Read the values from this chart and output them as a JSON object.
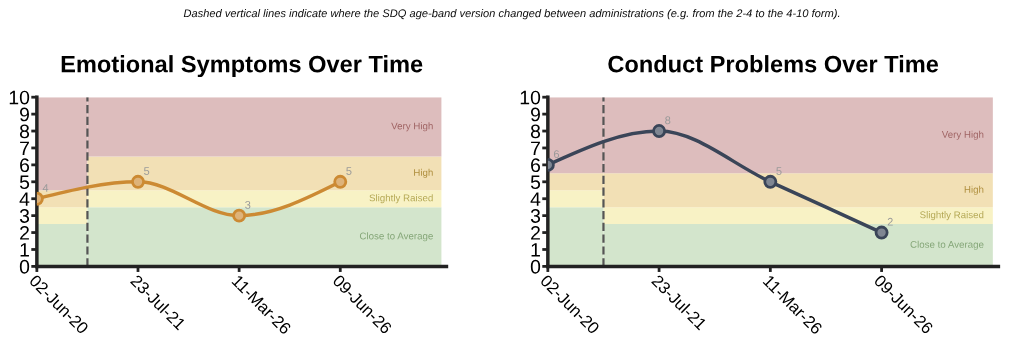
{
  "chart_data": [
    {
      "type": "line",
      "title": "Emotional Symptoms Over Time",
      "annotations": [
        "Dashed vertical lines indicate where the SDQ age-band version changed between administrations (e.g. from the 2-4 to the 4-10 form)."
      ],
      "categories": [
        "02-Jun-20",
        "23-Jul-21",
        "11-Mar-26",
        "09-Jun-26"
      ],
      "series": [
        {
          "color": "#cc8a33",
          "values": [
            4,
            5,
            3,
            5
          ]
        }
      ],
      "ylim": [
        0,
        10
      ],
      "yticks": [
        0,
        1,
        2,
        3,
        4,
        5,
        6,
        7,
        8,
        9,
        10
      ],
      "marker": "circle",
      "line_style": "solid",
      "data_labels": true,
      "bands": [
        {
          "axis": "y",
          "from": 0,
          "to": 2.5,
          "color": "#d3e5cc"
        },
        {
          "axis": "y",
          "from": 2.5,
          "to": 3.5,
          "color": "#f8f2c5"
        },
        {
          "axis": "y",
          "from": 3.5,
          "to": 4.5,
          "color": "#f2e0b5"
        },
        {
          "axis": "y",
          "from": 4.5,
          "to": 10,
          "color": "#ddbdbd"
        },
        {
          "axis": "y",
          "from": 0,
          "to": 3.5,
          "color": "#d3e5cc",
          "label": "Close to Average"
        },
        {
          "axis": "y",
          "from": 3.5,
          "to": 4.5,
          "color": "#f8f2c5",
          "label": "Slightly Raised"
        },
        {
          "axis": "y",
          "from": 4.5,
          "to": 6.5,
          "color": "#f2e0b5",
          "label": "High"
        },
        {
          "axis": "y",
          "from": 6.5,
          "to": 10,
          "color": "#ddbdbd",
          "label": "Very High"
        }
      ]
    },
    {
      "type": "line",
      "title": "Conduct Problems Over Time",
      "categories": [
        "02-Jun-20",
        "23-Jul-21",
        "11-Mar-26",
        "09-Jun-26"
      ],
      "series": [
        {
          "color": "#3a4558",
          "values": [
            6,
            8,
            5,
            2
          ]
        }
      ],
      "ylim": [
        0,
        10
      ],
      "yticks": [
        0,
        1,
        2,
        3,
        4,
        5,
        6,
        7,
        8,
        9,
        10
      ],
      "marker": "circle",
      "line_style": "solid",
      "data_labels": true,
      "bands": [
        {
          "axis": "y",
          "from": 0,
          "to": 2.5,
          "color": "#d3e5cc",
          "label": "Close to Average"
        },
        {
          "axis": "y",
          "from": 2.5,
          "to": 3.5,
          "color": "#f8f2c5",
          "label": "Slightly Raised"
        },
        {
          "axis": "y",
          "from": 3.5,
          "to": 5.5,
          "color": "#f2e0b5",
          "label": "High"
        },
        {
          "axis": "y",
          "from": 5.5,
          "to": 10,
          "color": "#ddbdbd",
          "label": "Very High"
        },
        {
          "axis": "y",
          "from": 0,
          "to": 3.5,
          "color": "#d3e5cc"
        },
        {
          "axis": "y",
          "from": 3.5,
          "to": 4.5,
          "color": "#f8f2c5"
        },
        {
          "axis": "y",
          "from": 4.5,
          "to": 5.5,
          "color": "#f2e0b5"
        },
        {
          "axis": "y",
          "from": 5.5,
          "to": 10,
          "color": "#ddbdbd"
        }
      ]
    }
  ]
}
